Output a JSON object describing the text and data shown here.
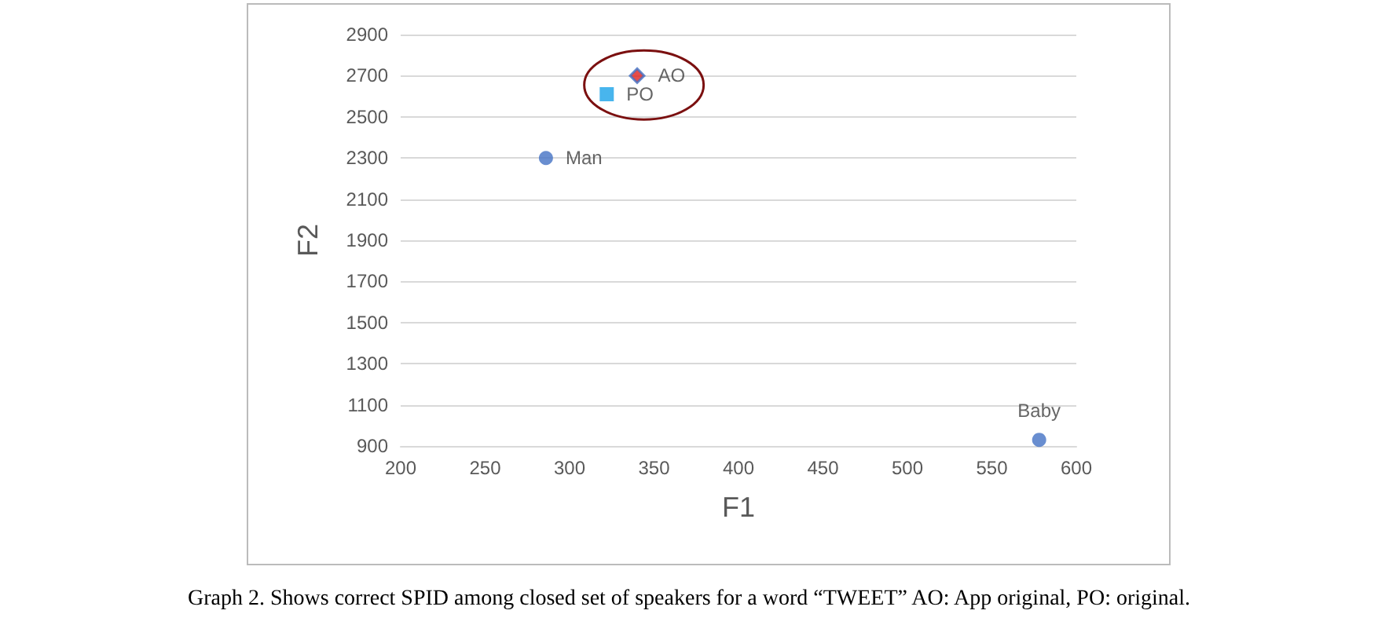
{
  "chart_data": {
    "type": "scatter",
    "xlabel": "F1",
    "ylabel": "F2",
    "xlim": [
      200,
      600
    ],
    "xticks": [
      200,
      250,
      300,
      350,
      400,
      450,
      500,
      550,
      600
    ],
    "ylim": [
      900,
      2900
    ],
    "yticks": [
      900,
      1100,
      1300,
      1500,
      1700,
      1900,
      2100,
      2300,
      2500,
      2700,
      2900
    ],
    "grid": "y",
    "legend": false,
    "series": [
      {
        "name": "AO",
        "color": "#e0201b",
        "marker": "diamond",
        "x": [
          340
        ],
        "values": [
          2700
        ]
      },
      {
        "name": "PO",
        "color": "#1aa3e8",
        "marker": "square",
        "x": [
          322
        ],
        "values": [
          2610
        ]
      },
      {
        "name": "Man",
        "color": "#4472c4",
        "marker": "circle",
        "x": [
          286
        ],
        "values": [
          2300
        ]
      },
      {
        "name": "Baby",
        "color": "#4472c4",
        "marker": "circle",
        "x": [
          578
        ],
        "values": [
          930
        ]
      }
    ],
    "annotations": [
      "Graph 2. Shows correct SPID among closed set of speakers for a word “TWEET” AO: App original, PO: original."
    ]
  }
}
